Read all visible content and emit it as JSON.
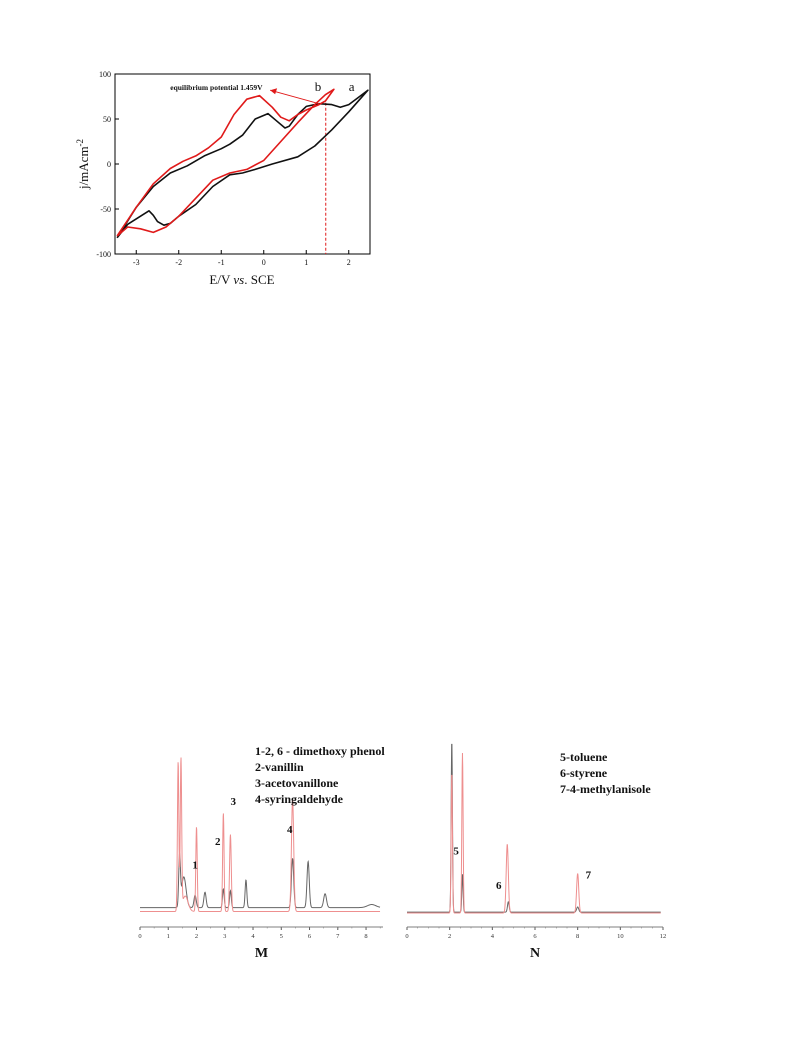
{
  "chart_data": [
    {
      "id": "cv",
      "type": "line",
      "xlabel_parts": [
        "E/V ",
        "vs",
        ". SCE"
      ],
      "ylabel_base": "j/mAcm",
      "ylabel_sup": "-2",
      "xlim": [
        -3.5,
        2.5
      ],
      "ylim": [
        -100,
        100
      ],
      "xticks": [
        -3,
        -2,
        -1,
        0,
        1,
        2
      ],
      "yticks": [
        -100,
        -50,
        0,
        50,
        100
      ],
      "annotation": "equilibrium potential 1.459V",
      "vline_x": 1.459,
      "series": [
        {
          "name": "a",
          "color": "#111111",
          "x": [
            -3.45,
            -3.2,
            -2.9,
            -2.7,
            -2.6,
            -2.5,
            -2.35,
            -2.2,
            -2.0,
            -1.6,
            -1.2,
            -0.8,
            -0.5,
            -0.2,
            0.2,
            0.8,
            1.2,
            1.6,
            2.0,
            2.45,
            2.2,
            2.0,
            1.8,
            1.6,
            1.3,
            1.0,
            0.8,
            0.6,
            0.5,
            0.3,
            0.1,
            -0.2,
            -0.5,
            -0.8,
            -1.0,
            -1.4,
            -1.8,
            -2.2,
            -2.6,
            -3.0,
            -3.45
          ],
          "y": [
            -82,
            -67,
            -58,
            -52,
            -57,
            -64,
            -68,
            -66,
            -58,
            -45,
            -25,
            -12,
            -10,
            -6,
            0,
            8,
            20,
            38,
            58,
            82,
            73,
            66,
            63,
            66,
            67,
            64,
            55,
            42,
            40,
            48,
            56,
            50,
            32,
            22,
            17,
            9,
            -2,
            -10,
            -25,
            -48,
            -82
          ]
        },
        {
          "name": "b",
          "color": "#e01a1a",
          "x": [
            -3.45,
            -3.2,
            -2.9,
            -2.6,
            -2.3,
            -2.0,
            -1.6,
            -1.2,
            -0.8,
            -0.4,
            0.0,
            0.4,
            0.8,
            1.2,
            1.45,
            1.65,
            1.45,
            1.3,
            1.0,
            0.8,
            0.6,
            0.4,
            0.2,
            -0.1,
            -0.4,
            -0.7,
            -1.0,
            -1.3,
            -1.6,
            -1.9,
            -2.2,
            -2.6,
            -3.0,
            -3.45
          ],
          "y": [
            -80,
            -70,
            -72,
            -76,
            -70,
            -58,
            -38,
            -18,
            -10,
            -6,
            4,
            25,
            46,
            66,
            77,
            83,
            70,
            66,
            60,
            55,
            48,
            52,
            63,
            76,
            72,
            55,
            30,
            18,
            9,
            3,
            -5,
            -22,
            -48,
            -80
          ]
        }
      ],
      "labels": [
        "a",
        "b"
      ]
    },
    {
      "id": "M",
      "type": "line",
      "panel_label": "M",
      "xlim": [
        0,
        8.6
      ],
      "xticks": [
        0,
        1,
        2,
        3,
        4,
        5,
        6,
        7,
        8
      ],
      "legend": [
        "1-2, 6 - dimethoxy phenol",
        "2-vanillin",
        "3-acetovanillone",
        "4-syringaldehyde"
      ],
      "peak_labels": [
        {
          "text": "1",
          "x": 1.95,
          "h": 0.29
        },
        {
          "text": "2",
          "x": 2.75,
          "h": 0.44
        },
        {
          "text": "3",
          "x": 3.3,
          "h": 0.7
        },
        {
          "text": "4",
          "x": 5.3,
          "h": 0.52
        }
      ],
      "series": [
        {
          "name": "gray",
          "color": "#666666",
          "baseline": 0.035,
          "peaks": [
            {
              "x": 1.4,
              "h": 0.32,
              "w": 0.03
            },
            {
              "x": 1.55,
              "h": 0.2,
              "w": 0.08
            },
            {
              "x": 1.95,
              "h": 0.08,
              "w": 0.04
            },
            {
              "x": 2.3,
              "h": 0.1,
              "w": 0.04
            },
            {
              "x": 2.95,
              "h": 0.12,
              "w": 0.03
            },
            {
              "x": 3.2,
              "h": 0.11,
              "w": 0.03
            },
            {
              "x": 3.75,
              "h": 0.18,
              "w": 0.03
            },
            {
              "x": 5.4,
              "h": 0.32,
              "w": 0.04
            },
            {
              "x": 5.95,
              "h": 0.3,
              "w": 0.04
            },
            {
              "x": 6.55,
              "h": 0.09,
              "w": 0.05
            },
            {
              "x": 8.2,
              "h": 0.02,
              "w": 0.15
            }
          ]
        },
        {
          "name": "red",
          "color": "#ee8f8f",
          "baseline": 0.01,
          "peaks": [
            {
              "x": 1.35,
              "h": 0.97,
              "w": 0.025
            },
            {
              "x": 1.45,
              "h": 0.97,
              "w": 0.025
            },
            {
              "x": 1.6,
              "h": 0.1,
              "w": 0.1
            },
            {
              "x": 2.0,
              "h": 0.55,
              "w": 0.025
            },
            {
              "x": 2.95,
              "h": 0.64,
              "w": 0.025
            },
            {
              "x": 3.2,
              "h": 0.5,
              "w": 0.03
            },
            {
              "x": 5.4,
              "h": 0.73,
              "w": 0.04
            }
          ]
        }
      ]
    },
    {
      "id": "N",
      "type": "line",
      "panel_label": "N",
      "xlim": [
        0,
        12
      ],
      "xticks": [
        0,
        2,
        4,
        6,
        8,
        10,
        12
      ],
      "legend": [
        "5-toluene",
        "6-styrene",
        "7-4-methylanisole"
      ],
      "peak_labels": [
        {
          "text": "5",
          "x": 2.3,
          "h": 0.34
        },
        {
          "text": "6",
          "x": 4.3,
          "h": 0.14
        },
        {
          "text": "7",
          "x": 8.5,
          "h": 0.2
        }
      ],
      "series": [
        {
          "name": "gray",
          "color": "#666666",
          "baseline": 0.005,
          "peaks": [
            {
              "x": 2.1,
              "h": 1.0,
              "w": 0.03
            },
            {
              "x": 2.6,
              "h": 0.22,
              "w": 0.03
            },
            {
              "x": 4.75,
              "h": 0.06,
              "w": 0.04
            },
            {
              "x": 8.0,
              "h": 0.03,
              "w": 0.05
            }
          ]
        },
        {
          "name": "red",
          "color": "#ee8f8f",
          "baseline": 0.0,
          "peaks": [
            {
              "x": 2.1,
              "h": 0.82,
              "w": 0.03
            },
            {
              "x": 2.6,
              "h": 0.93,
              "w": 0.03
            },
            {
              "x": 4.7,
              "h": 0.4,
              "w": 0.05
            },
            {
              "x": 8.0,
              "h": 0.23,
              "w": 0.05
            }
          ]
        }
      ]
    }
  ]
}
